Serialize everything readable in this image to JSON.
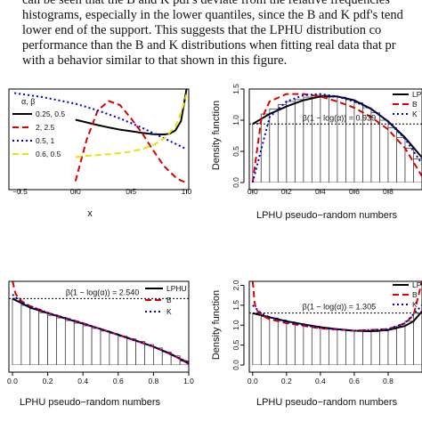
{
  "paragraph": {
    "lines": [
      "can be seen that the B and K pdf's deviate from the relative frequencies",
      "histograms, especially in the lower quantiles, since the B and K pdf's tend",
      "lower end of the support. This suggests that the LPHU distribution co",
      "performance than the B and K distributions when fitting real data that pr",
      "with a behavior similar to that shown in this figure."
    ]
  },
  "chart_data": [
    {
      "type": "line",
      "panel": "top-left",
      "xlabel": "x",
      "ylabel": "",
      "xlim": [
        -0.6,
        1.02
      ],
      "ylim": [
        0,
        3.5
      ],
      "xticks": [
        "−0.5",
        "0.0",
        "0.5",
        "1.0"
      ],
      "legend": {
        "title": "α, β",
        "placement": "inside-left",
        "entries": [
          "0.25, 0.5",
          "2, 2.5",
          "0.5, 1",
          "0.6, 0.5"
        ]
      },
      "series": [
        {
          "name": "0.25, 0.5",
          "color": "#000000",
          "dash": "solid",
          "x": [
            0,
            0.1,
            0.2,
            0.3,
            0.4,
            0.5,
            0.6,
            0.7,
            0.8,
            0.85,
            0.9,
            0.95,
            0.98,
            1.0
          ],
          "y": [
            2.35,
            2.25,
            2.15,
            2.06,
            1.98,
            1.92,
            1.86,
            1.81,
            1.8,
            1.83,
            1.95,
            2.3,
            3.0,
            3.5
          ]
        },
        {
          "name": "2, 2.5",
          "color": "#dd0000",
          "dash": "dashed",
          "x": [
            0,
            0.1,
            0.2,
            0.3,
            0.4,
            0.5,
            0.6,
            0.7,
            0.8,
            0.9,
            0.95,
            1.0
          ],
          "y": [
            0.05,
            1.6,
            2.7,
            3.05,
            2.9,
            2.4,
            1.85,
            1.2,
            0.6,
            0.2,
            0.07,
            0.0
          ]
        },
        {
          "name": "0.5, 1",
          "color": "#0000cc",
          "dash": "dotted",
          "x": [
            -0.55,
            -0.3,
            0,
            0.2,
            0.4,
            0.6,
            0.8,
            1.0
          ],
          "y": [
            3.35,
            3.2,
            2.95,
            2.7,
            2.4,
            2.05,
            1.65,
            1.25
          ]
        },
        {
          "name": "0.6, 0.5",
          "color": "#e6e600",
          "dash": "dashed",
          "x": [
            0,
            0.1,
            0.2,
            0.3,
            0.4,
            0.5,
            0.6,
            0.7,
            0.8,
            0.9,
            0.95,
            1.0
          ],
          "y": [
            0.95,
            1.0,
            1.03,
            1.06,
            1.1,
            1.16,
            1.25,
            1.4,
            1.65,
            2.1,
            2.6,
            3.3
          ]
        }
      ]
    },
    {
      "type": "bar",
      "panel": "top-right",
      "xlabel": "LPHU pseudo−random numbers",
      "ylabel": "Density function",
      "xlim": [
        -0.02,
        1.0
      ],
      "ylim": [
        0,
        1.5
      ],
      "xticks": [
        "0.0",
        "0.2",
        "0.4",
        "0.6",
        "0.8"
      ],
      "yticks": [
        "0.0",
        "0.5",
        "1.0",
        "1.5"
      ],
      "annotation": "β(1 − log(α)) = 0.939",
      "hline": 0.939,
      "legend": {
        "placement": "top-right",
        "entries": [
          "LPHU",
          "B",
          "K"
        ]
      },
      "histogram": {
        "bins_left": [
          0,
          0.05,
          0.1,
          0.15,
          0.2,
          0.25,
          0.3,
          0.35,
          0.4,
          0.45,
          0.5,
          0.55,
          0.6,
          0.65,
          0.7,
          0.75,
          0.8,
          0.85,
          0.9,
          0.95
        ],
        "bin_width": 0.05,
        "values": [
          0.95,
          1.1,
          1.18,
          1.25,
          1.3,
          1.33,
          1.37,
          1.4,
          1.4,
          1.39,
          1.37,
          1.33,
          1.28,
          1.2,
          1.12,
          1.0,
          0.88,
          0.72,
          0.55,
          0.38
        ]
      },
      "series": [
        {
          "name": "LPHU",
          "color": "#000000",
          "dash": "solid",
          "x": [
            0,
            0.1,
            0.2,
            0.3,
            0.4,
            0.5,
            0.6,
            0.7,
            0.8,
            0.9,
            1.0
          ],
          "y": [
            0.94,
            1.1,
            1.22,
            1.32,
            1.38,
            1.38,
            1.32,
            1.18,
            0.98,
            0.72,
            0.4
          ]
        },
        {
          "name": "B",
          "color": "#dd0000",
          "dash": "dashed",
          "x": [
            0,
            0.05,
            0.1,
            0.2,
            0.3,
            0.4,
            0.5,
            0.6,
            0.7,
            0.8,
            0.9,
            1.0
          ],
          "y": [
            0.0,
            1.0,
            1.3,
            1.42,
            1.42,
            1.38,
            1.3,
            1.2,
            1.05,
            0.85,
            0.55,
            0.1
          ]
        },
        {
          "name": "K",
          "color": "#0000cc",
          "dash": "dotted",
          "x": [
            0,
            0.1,
            0.2,
            0.3,
            0.4,
            0.5,
            0.6,
            0.7,
            0.8,
            0.9,
            1.0
          ],
          "y": [
            0.0,
            1.05,
            1.3,
            1.4,
            1.42,
            1.38,
            1.3,
            1.18,
            0.98,
            0.7,
            0.3
          ]
        }
      ]
    },
    {
      "type": "bar",
      "panel": "bottom-left",
      "xlabel": "LPHU pseudo−random numbers",
      "ylabel": "",
      "xlim": [
        -0.02,
        1.0
      ],
      "ylim": [
        0,
        3.2
      ],
      "xticks": [
        "0.0",
        "0.2",
        "0.4",
        "0.6",
        "0.8",
        "1.0"
      ],
      "annotation": "β(1 − log(α)) = 2.540",
      "hline": 2.54,
      "legend": {
        "placement": "top-right",
        "entries": [
          "LPHU",
          "B",
          "K"
        ]
      },
      "histogram": {
        "bins_left": [
          0,
          0.05,
          0.1,
          0.15,
          0.2,
          0.25,
          0.3,
          0.35,
          0.4,
          0.45,
          0.5,
          0.55,
          0.6,
          0.65,
          0.7,
          0.75,
          0.8,
          0.85,
          0.9,
          0.95
        ],
        "bin_width": 0.05,
        "values": [
          2.55,
          2.28,
          2.15,
          2.0,
          1.9,
          1.8,
          1.7,
          1.6,
          1.5,
          1.4,
          1.3,
          1.2,
          1.1,
          1.0,
          0.9,
          0.78,
          0.65,
          0.5,
          0.35,
          0.15
        ]
      },
      "series": [
        {
          "name": "LPHU",
          "color": "#000000",
          "dash": "solid",
          "x": [
            0,
            0.1,
            0.2,
            0.3,
            0.4,
            0.5,
            0.6,
            0.7,
            0.8,
            0.9,
            1.0
          ],
          "y": [
            2.54,
            2.2,
            1.98,
            1.78,
            1.58,
            1.38,
            1.16,
            0.94,
            0.7,
            0.42,
            0.05
          ]
        },
        {
          "name": "B",
          "color": "#dd0000",
          "dash": "dashed",
          "x": [
            0,
            0.005,
            0.01,
            0.02,
            0.05,
            0.1,
            0.2,
            0.4,
            0.6,
            0.8,
            1.0
          ],
          "y": [
            3.2,
            3.1,
            2.9,
            2.7,
            2.45,
            2.25,
            2.0,
            1.6,
            1.15,
            0.7,
            0.1
          ]
        },
        {
          "name": "K",
          "color": "#0000cc",
          "dash": "dotted",
          "x": [
            0,
            0.05,
            0.1,
            0.2,
            0.4,
            0.6,
            0.8,
            1.0
          ],
          "y": [
            2.7,
            2.4,
            2.25,
            2.0,
            1.6,
            1.15,
            0.7,
            0.1
          ]
        }
      ]
    },
    {
      "type": "bar",
      "panel": "bottom-right",
      "xlabel": "LPHU pseudo−random numbers",
      "ylabel": "Density function",
      "xlim": [
        -0.02,
        1.0
      ],
      "ylim": [
        0,
        2.1
      ],
      "xticks": [
        "0.0",
        "0.2",
        "0.4",
        "0.6",
        "0.8"
      ],
      "yticks": [
        "0.0",
        "0.5",
        "1.0",
        "1.5",
        "2.0"
      ],
      "annotation": "β(1 − log(α)) = 1.305",
      "hline": 1.305,
      "legend": {
        "placement": "top-right",
        "entries": [
          "LPHU",
          "B",
          "K"
        ]
      },
      "histogram": {
        "bins_left": [
          0,
          0.05,
          0.1,
          0.15,
          0.2,
          0.25,
          0.3,
          0.35,
          0.4,
          0.45,
          0.5,
          0.55,
          0.6,
          0.65,
          0.7,
          0.75,
          0.8,
          0.85,
          0.9,
          0.95
        ],
        "bin_width": 0.05,
        "values": [
          1.3,
          1.22,
          1.18,
          1.13,
          1.08,
          1.04,
          1.0,
          0.97,
          0.94,
          0.9,
          0.88,
          0.86,
          0.85,
          0.84,
          0.84,
          0.86,
          0.9,
          0.98,
          1.1,
          1.3
        ]
      },
      "series": [
        {
          "name": "LPHU",
          "color": "#000000",
          "dash": "solid",
          "x": [
            0,
            0.1,
            0.2,
            0.3,
            0.4,
            0.5,
            0.6,
            0.7,
            0.8,
            0.9,
            0.95,
            1.0
          ],
          "y": [
            1.3,
            1.2,
            1.1,
            1.02,
            0.95,
            0.9,
            0.86,
            0.85,
            0.88,
            0.98,
            1.1,
            1.35
          ]
        },
        {
          "name": "B",
          "color": "#dd0000",
          "dash": "dashed",
          "x": [
            0,
            0.005,
            0.01,
            0.02,
            0.05,
            0.1,
            0.2,
            0.4,
            0.6,
            0.8,
            0.9,
            0.95,
            1.0
          ],
          "y": [
            2.1,
            1.9,
            1.6,
            1.4,
            1.25,
            1.15,
            1.05,
            0.92,
            0.86,
            0.9,
            1.05,
            1.25,
            2.1
          ]
        },
        {
          "name": "K",
          "color": "#0000cc",
          "dash": "dotted",
          "x": [
            0,
            0.05,
            0.1,
            0.2,
            0.4,
            0.6,
            0.8,
            0.9,
            1.0
          ],
          "y": [
            1.5,
            1.3,
            1.2,
            1.08,
            0.93,
            0.86,
            0.9,
            1.05,
            1.5
          ]
        }
      ]
    }
  ]
}
